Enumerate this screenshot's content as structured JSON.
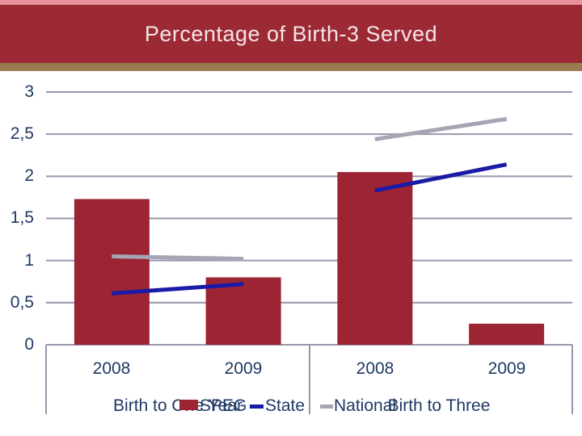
{
  "slide": {
    "title": "Percentage of Birth-3 Served"
  },
  "colors": {
    "top_strip": "#E7929B",
    "title_bar": "#9B2A35",
    "title_text": "#F6E4E6",
    "accent_strip": "#9B7A52",
    "bar": "#9C2433",
    "gridline": "#9598AD",
    "axis_text": "#1F3864",
    "state_line": "#1A1AA6",
    "national_line": "#A5A5B5"
  },
  "chart_data": {
    "type": "bar",
    "has_trend_lines": true,
    "title": "Percentage of Birth-3 Served",
    "ylabel": "",
    "xlabel": "",
    "ylim": [
      0,
      3
    ],
    "grid_step": 0.5,
    "grid": "on",
    "decimal_style": "comma",
    "tick_labels": [
      "0",
      "0,5",
      "1",
      "1,5",
      "2",
      "2,5",
      "3"
    ],
    "tick_values": [
      0,
      0.5,
      1,
      1.5,
      2,
      2.5,
      3
    ],
    "groups": [
      "Birth to One Year",
      "Birth to Three"
    ],
    "categories": [
      "2008",
      "2009",
      "2008",
      "2009"
    ],
    "bars": {
      "name": "SPEG",
      "values": [
        1.73,
        0.8,
        2.05,
        0.25
      ]
    },
    "lines": [
      {
        "name": "State",
        "color_key": "state_line",
        "segments": [
          {
            "cats": [
              0,
              1
            ],
            "values": [
              0.61,
              0.72
            ]
          },
          {
            "cats": [
              2,
              3
            ],
            "values": [
              1.83,
              2.14
            ]
          }
        ]
      },
      {
        "name": "National",
        "color_key": "national_line",
        "segments": [
          {
            "cats": [
              0,
              1
            ],
            "values": [
              1.05,
              1.02
            ]
          },
          {
            "cats": [
              2,
              3
            ],
            "values": [
              2.44,
              2.68
            ]
          }
        ]
      }
    ],
    "legend": [
      {
        "label": "SPEG",
        "marker": "swatch"
      },
      {
        "label": "State",
        "marker": "line"
      },
      {
        "label": "National",
        "marker": "line"
      }
    ],
    "legend_position": "bottom"
  }
}
